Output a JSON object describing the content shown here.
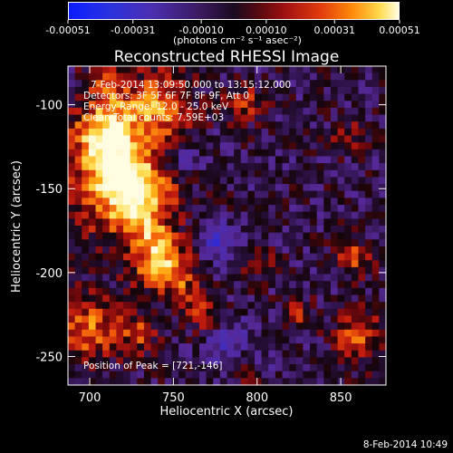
{
  "colorbar": {
    "tick_labels": [
      "-0.00051",
      "-0.00031",
      "-0.00010",
      "0.00010",
      "0.00031",
      "0.00051"
    ],
    "tick_values": [
      -0.00051,
      -0.00031,
      -0.0001,
      0.0001,
      0.00031,
      0.00051
    ],
    "range": [
      -0.00051,
      0.00051
    ],
    "unit_label": "(photons cm⁻² s⁻¹ asec⁻²)",
    "colors": [
      "#0a1cff",
      "#3b1a5e",
      "#1a0a20",
      "#a31212",
      "#ff8a0a",
      "#fffde0"
    ]
  },
  "chart_data": {
    "type": "heatmap",
    "title": "Reconstructed RHESSI Image",
    "xlabel": "Heliocentric X (arcsec)",
    "ylabel": "Heliocentric Y (arcsec)",
    "xlim": [
      687,
      877
    ],
    "ylim": [
      -267,
      -77
    ],
    "xticks": [
      700,
      750,
      800,
      850
    ],
    "yticks": [
      -100,
      -150,
      -200,
      -250
    ],
    "info_lines": [
      "7-Feb-2014 13:09:50.000 to 13:15:12.000",
      "Detectors: 3F 5F 6F 7F 8F 9F, Att 0",
      "Energy Range: 12.0 - 25.0 keV",
      "Clean    Total counts: 7.59E+03"
    ],
    "peak_label": "Position of Peak = [721,-146]",
    "peak": [
      721,
      -146
    ],
    "grid": false
  },
  "footer": {
    "timestamp": "8-Feb-2014 10:49"
  }
}
